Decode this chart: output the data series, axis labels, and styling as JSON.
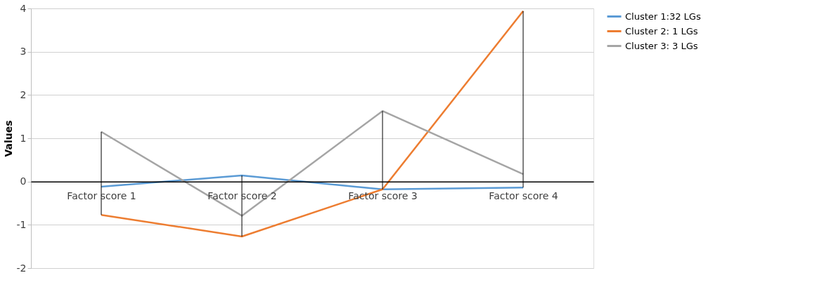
{
  "chart_data": {
    "type": "line",
    "ylabel": "Values",
    "categories": [
      "Factor score 1",
      "Factor score 2",
      "Factor score 3",
      "Factor score 4"
    ],
    "series": [
      {
        "name": "Cluster 1:32 LGs",
        "color": "#5b9bd5",
        "values": [
          -0.12,
          0.14,
          -0.18,
          -0.14
        ]
      },
      {
        "name": "Cluster 2: 1 LGs",
        "color": "#ed7d31",
        "values": [
          -0.77,
          -1.27,
          -0.18,
          3.94
        ]
      },
      {
        "name": "Cluster 3: 3 LGs",
        "color": "#a5a5a5",
        "values": [
          1.15,
          -0.79,
          1.63,
          0.17
        ]
      },
      {
        "type": "bar",
        "color": "#000000",
        "base": [
          -0.77,
          -1.27,
          -0.18,
          -0.14
        ],
        "values": [
          1.92,
          1.41,
          1.81,
          4.08
        ]
      }
    ],
    "ylim": [
      -2,
      4
    ],
    "yticks": [
      -2,
      -1,
      0,
      1,
      2,
      3,
      4
    ],
    "grid": "y",
    "legend": "right",
    "marker": "none",
    "line_style": "solid"
  }
}
